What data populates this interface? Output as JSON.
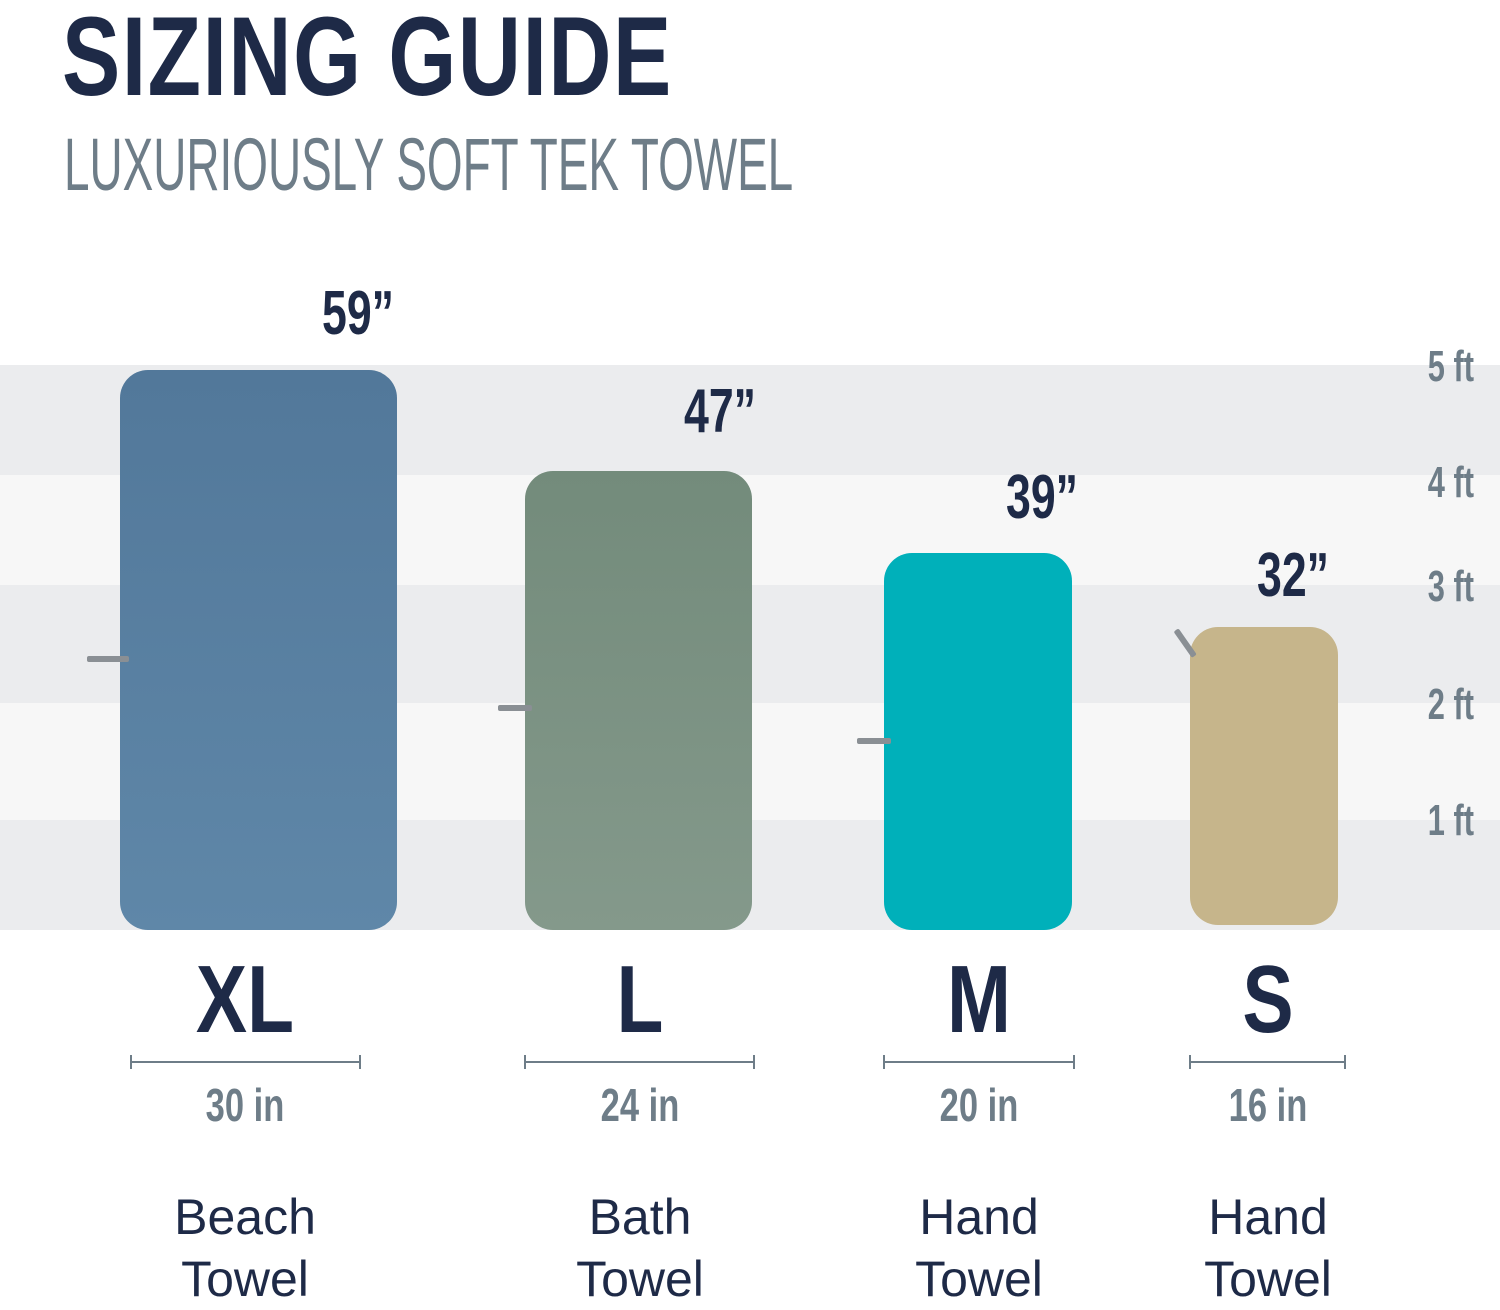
{
  "header": {
    "title": "SIZING GUIDE",
    "subtitle": "LUXURIOUSLY SOFT TEK TOWEL"
  },
  "scale": {
    "labels": [
      "5 ft",
      "4 ft",
      "3 ft",
      "2 ft",
      "1 ft"
    ]
  },
  "towels": [
    {
      "size": "XL",
      "length": "59”",
      "width": "30 in",
      "type_line1": "Beach",
      "type_line2": "Towel",
      "color": "#56809f"
    },
    {
      "size": "L",
      "length": "47”",
      "width": "24 in",
      "type_line1": "Bath",
      "type_line2": "Towel",
      "color": "#7a9080"
    },
    {
      "size": "M",
      "length": "39”",
      "width": "20 in",
      "type_line1": "Hand",
      "type_line2": "Towel",
      "color": "#00b0ba"
    },
    {
      "size": "S",
      "length": "32”",
      "width": "16 in",
      "type_line1": "Hand",
      "type_line2": "Towel",
      "color": "#c6b58b"
    }
  ]
}
